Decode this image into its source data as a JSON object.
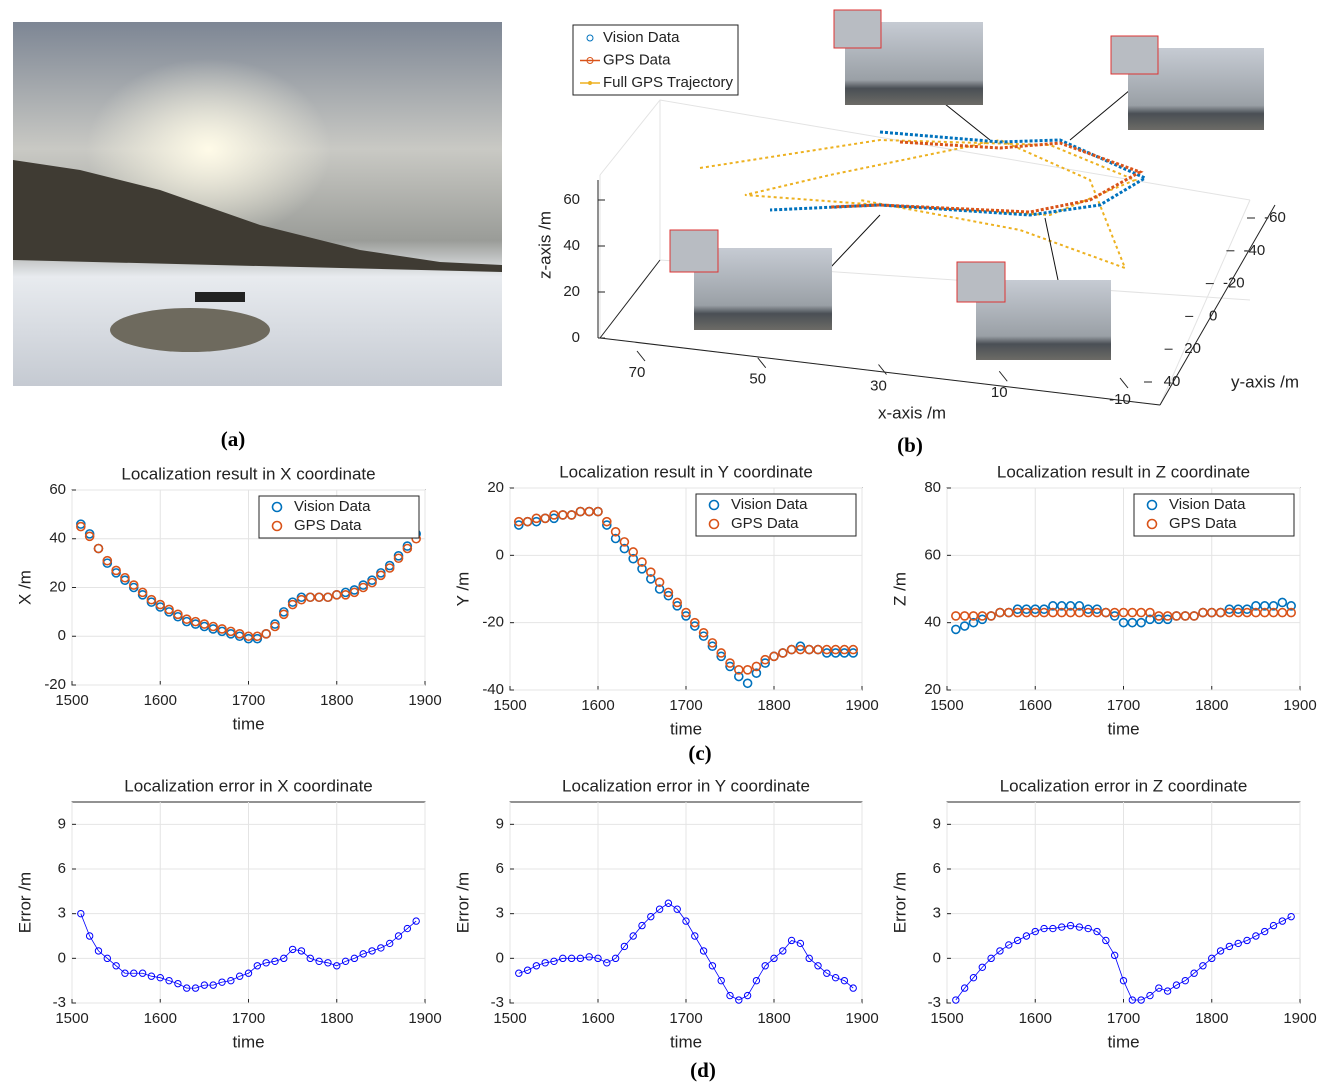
{
  "captions": [
    "(a)",
    "(b)",
    "(c)",
    "(d)"
  ],
  "chart_data": [
    {
      "type": "scatter3d",
      "xlabel": "x-axis /m",
      "ylabel": "y-axis /m",
      "zlabel": "z-axis /m",
      "xlim": [
        -10,
        70
      ],
      "ylim": [
        -60,
        40
      ],
      "zlim": [
        0,
        70
      ],
      "xticks": [
        70,
        50,
        30,
        10,
        -10
      ],
      "yticks": [
        -60,
        -40,
        -20,
        0,
        20,
        40
      ],
      "zticks": [
        0,
        20,
        40,
        60
      ],
      "series": [
        {
          "name": "Vision Data",
          "color": "#0072bd"
        },
        {
          "name": "GPS Data",
          "color": "#d95319"
        },
        {
          "name": "Full GPS Trajectory",
          "color": "#edb120"
        }
      ],
      "legend": "upper left",
      "grid": true
    },
    {
      "type": "scatter",
      "title": "Localization result in X coordinate",
      "xlabel": "time",
      "ylabel": "X /m",
      "x": [
        1510,
        1520,
        1530,
        1540,
        1550,
        1560,
        1570,
        1580,
        1590,
        1600,
        1610,
        1620,
        1630,
        1640,
        1650,
        1660,
        1670,
        1680,
        1690,
        1700,
        1710,
        1720,
        1730,
        1740,
        1750,
        1760,
        1770,
        1780,
        1790,
        1800,
        1810,
        1820,
        1830,
        1840,
        1850,
        1860,
        1870,
        1880,
        1890
      ],
      "series": [
        {
          "name": "Vision Data",
          "color": "#0072bd",
          "values": [
            46,
            42,
            36,
            30,
            26,
            23,
            20,
            17,
            14,
            12,
            10,
            8,
            6,
            5,
            4,
            3,
            2,
            1,
            0,
            -1,
            -1,
            1,
            5,
            10,
            14,
            16,
            16,
            16,
            16,
            17,
            18,
            19,
            21,
            23,
            26,
            29,
            33,
            37,
            42
          ]
        },
        {
          "name": "GPS Data",
          "color": "#d95319",
          "values": [
            45,
            41,
            36,
            31,
            27,
            24,
            21,
            18,
            15,
            13,
            11,
            9,
            7,
            6,
            5,
            4,
            3,
            2,
            1,
            0,
            0,
            1,
            4,
            9,
            13,
            15,
            16,
            16,
            16,
            17,
            17,
            18,
            20,
            22,
            25,
            28,
            32,
            36,
            40
          ]
        }
      ],
      "xlim": [
        1500,
        1900
      ],
      "xticks": [
        1500,
        1600,
        1700,
        1800,
        1900
      ],
      "ylim": [
        -20,
        60
      ],
      "yticks": [
        -20,
        0,
        20,
        40,
        60
      ],
      "grid": true,
      "legend": "upper right"
    },
    {
      "type": "scatter",
      "title": "Localization result in Y coordinate",
      "xlabel": "time",
      "ylabel": "Y /m",
      "x": [
        1510,
        1520,
        1530,
        1540,
        1550,
        1560,
        1570,
        1580,
        1590,
        1600,
        1610,
        1620,
        1630,
        1640,
        1650,
        1660,
        1670,
        1680,
        1690,
        1700,
        1710,
        1720,
        1730,
        1740,
        1750,
        1760,
        1770,
        1780,
        1790,
        1800,
        1810,
        1820,
        1830,
        1840,
        1850,
        1860,
        1870,
        1880,
        1890
      ],
      "series": [
        {
          "name": "Vision Data",
          "color": "#0072bd",
          "values": [
            9,
            10,
            10,
            11,
            11,
            12,
            12,
            13,
            13,
            13,
            9,
            5,
            2,
            -1,
            -4,
            -7,
            -10,
            -12,
            -15,
            -18,
            -21,
            -24,
            -27,
            -30,
            -33,
            -36,
            -38,
            -35,
            -32,
            -30,
            -29,
            -28,
            -27,
            -28,
            -28,
            -29,
            -29,
            -29,
            -29
          ]
        },
        {
          "name": "GPS Data",
          "color": "#d95319",
          "values": [
            10,
            10,
            11,
            11,
            12,
            12,
            12,
            13,
            13,
            13,
            10,
            7,
            4,
            1,
            -2,
            -5,
            -8,
            -11,
            -14,
            -17,
            -20,
            -23,
            -26,
            -29,
            -32,
            -34,
            -34,
            -33,
            -31,
            -30,
            -29,
            -28,
            -28,
            -28,
            -28,
            -28,
            -28,
            -28,
            -28
          ]
        }
      ],
      "xlim": [
        1500,
        1900
      ],
      "xticks": [
        1500,
        1600,
        1700,
        1800,
        1900
      ],
      "ylim": [
        -40,
        20
      ],
      "yticks": [
        -40,
        -20,
        0,
        20
      ],
      "grid": true,
      "legend": "upper right"
    },
    {
      "type": "scatter",
      "title": "Localization result in Z coordinate",
      "xlabel": "time",
      "ylabel": "Z /m",
      "x": [
        1510,
        1520,
        1530,
        1540,
        1550,
        1560,
        1570,
        1580,
        1590,
        1600,
        1610,
        1620,
        1630,
        1640,
        1650,
        1660,
        1670,
        1680,
        1690,
        1700,
        1710,
        1720,
        1730,
        1740,
        1750,
        1760,
        1770,
        1780,
        1790,
        1800,
        1810,
        1820,
        1830,
        1840,
        1850,
        1860,
        1870,
        1880,
        1890
      ],
      "series": [
        {
          "name": "Vision Data",
          "color": "#0072bd",
          "values": [
            38,
            39,
            40,
            41,
            42,
            43,
            43,
            44,
            44,
            44,
            44,
            45,
            45,
            45,
            45,
            44,
            44,
            43,
            42,
            40,
            40,
            40,
            41,
            41,
            41,
            42,
            42,
            42,
            43,
            43,
            43,
            44,
            44,
            44,
            45,
            45,
            45,
            46,
            45
          ]
        },
        {
          "name": "GPS Data",
          "color": "#d95319",
          "values": [
            42,
            42,
            42,
            42,
            42,
            43,
            43,
            43,
            43,
            43,
            43,
            43,
            43,
            43,
            43,
            43,
            43,
            43,
            43,
            43,
            43,
            43,
            43,
            42,
            42,
            42,
            42,
            42,
            43,
            43,
            43,
            43,
            43,
            43,
            43,
            43,
            43,
            43,
            43
          ]
        }
      ],
      "xlim": [
        1500,
        1900
      ],
      "xticks": [
        1500,
        1600,
        1700,
        1800,
        1900
      ],
      "ylim": [
        20,
        80
      ],
      "yticks": [
        20,
        40,
        60,
        80
      ],
      "grid": true,
      "legend": "upper right"
    },
    {
      "type": "scatter",
      "title": "Localization error in X coordinate",
      "xlabel": "time",
      "ylabel": "Error /m",
      "x": [
        1510,
        1520,
        1530,
        1540,
        1550,
        1560,
        1570,
        1580,
        1590,
        1600,
        1610,
        1620,
        1630,
        1640,
        1650,
        1660,
        1670,
        1680,
        1690,
        1700,
        1710,
        1720,
        1730,
        1740,
        1750,
        1760,
        1770,
        1780,
        1790,
        1800,
        1810,
        1820,
        1830,
        1840,
        1850,
        1860,
        1870,
        1880,
        1890
      ],
      "values": [
        3,
        1.5,
        0.5,
        0,
        -0.5,
        -1,
        -1,
        -1,
        -1.2,
        -1.3,
        -1.5,
        -1.7,
        -2,
        -2,
        -1.8,
        -1.8,
        -1.6,
        -1.5,
        -1.2,
        -1,
        -0.5,
        -0.3,
        -0.2,
        0,
        0.6,
        0.5,
        0,
        -0.2,
        -0.3,
        -0.5,
        -0.2,
        0,
        0.3,
        0.5,
        0.7,
        1,
        1.5,
        2,
        2.5
      ],
      "color": "#0000ff",
      "xlim": [
        1500,
        1900
      ],
      "xticks": [
        1500,
        1600,
        1700,
        1800,
        1900
      ],
      "ylim": [
        -3,
        10.5
      ],
      "yticks": [
        -3,
        0,
        3,
        6,
        9
      ],
      "grid": true
    },
    {
      "type": "scatter",
      "title": "Localization error in Y coordinate",
      "xlabel": "time",
      "ylabel": "Error /m",
      "x": [
        1510,
        1520,
        1530,
        1540,
        1550,
        1560,
        1570,
        1580,
        1590,
        1600,
        1610,
        1620,
        1630,
        1640,
        1650,
        1660,
        1670,
        1680,
        1690,
        1700,
        1710,
        1720,
        1730,
        1740,
        1750,
        1760,
        1770,
        1780,
        1790,
        1800,
        1810,
        1820,
        1830,
        1840,
        1850,
        1860,
        1870,
        1880,
        1890
      ],
      "values": [
        -1,
        -0.8,
        -0.5,
        -0.3,
        -0.2,
        0,
        0,
        0,
        0.1,
        0,
        -0.3,
        0,
        0.8,
        1.5,
        2.2,
        2.8,
        3.3,
        3.7,
        3.3,
        2.5,
        1.5,
        0.5,
        -0.5,
        -1.5,
        -2.5,
        -2.8,
        -2.5,
        -1.5,
        -0.5,
        0,
        0.5,
        1.2,
        1,
        0,
        -0.5,
        -1,
        -1.3,
        -1.5,
        -2
      ],
      "color": "#0000ff",
      "xlim": [
        1500,
        1900
      ],
      "xticks": [
        1500,
        1600,
        1700,
        1800,
        1900
      ],
      "ylim": [
        -3,
        10.5
      ],
      "yticks": [
        -3,
        0,
        3,
        6,
        9
      ],
      "grid": true
    },
    {
      "type": "scatter",
      "title": "Localization error in Z coordinate",
      "xlabel": "time",
      "ylabel": "Error /m",
      "x": [
        1510,
        1520,
        1530,
        1540,
        1550,
        1560,
        1570,
        1580,
        1590,
        1600,
        1610,
        1620,
        1630,
        1640,
        1650,
        1660,
        1670,
        1680,
        1690,
        1700,
        1710,
        1720,
        1730,
        1740,
        1750,
        1760,
        1770,
        1780,
        1790,
        1800,
        1810,
        1820,
        1830,
        1840,
        1850,
        1860,
        1870,
        1880,
        1890
      ],
      "values": [
        -2.8,
        -2,
        -1.3,
        -0.6,
        0,
        0.5,
        0.9,
        1.2,
        1.5,
        1.8,
        2,
        2,
        2.1,
        2.2,
        2.1,
        2,
        1.8,
        1.2,
        0.2,
        -1.5,
        -2.8,
        -2.8,
        -2.5,
        -2,
        -2.2,
        -1.8,
        -1.5,
        -1,
        -0.5,
        0,
        0.5,
        0.8,
        1,
        1.2,
        1.5,
        1.8,
        2.2,
        2.5,
        2.8
      ],
      "color": "#0000ff",
      "xlim": [
        1500,
        1900
      ],
      "xticks": [
        1500,
        1600,
        1700,
        1800,
        1900
      ],
      "ylim": [
        -3,
        10.5
      ],
      "yticks": [
        -3,
        0,
        3,
        6,
        9
      ],
      "grid": true
    }
  ]
}
